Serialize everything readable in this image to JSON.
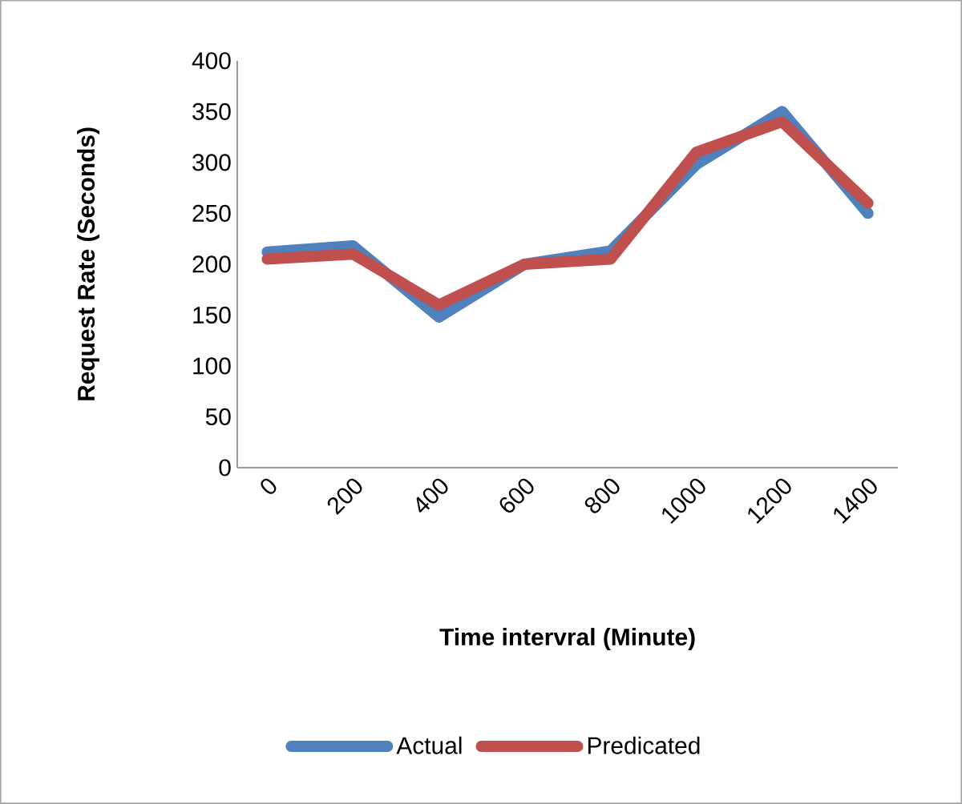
{
  "chart_data": {
    "type": "line",
    "xlabel": "Time intervral (Minute)",
    "ylabel": "Request Rate (Seconds)",
    "categories": [
      "0",
      "200",
      "400",
      "600",
      "800",
      "1000",
      "1200",
      "1400"
    ],
    "series": [
      {
        "name": "Actual",
        "color": "#4f81bd",
        "values": [
          212,
          218,
          148,
          200,
          213,
          298,
          350,
          250
        ]
      },
      {
        "name": "Predicated",
        "color": "#c0504d",
        "values": [
          205,
          210,
          160,
          200,
          205,
          310,
          340,
          260
        ]
      }
    ],
    "ylim": [
      0,
      400
    ],
    "yticks": [
      0,
      50,
      100,
      150,
      200,
      250,
      300,
      350,
      400
    ],
    "grid": false,
    "legend": "bottom",
    "marker": "none",
    "line_style": "solid"
  }
}
